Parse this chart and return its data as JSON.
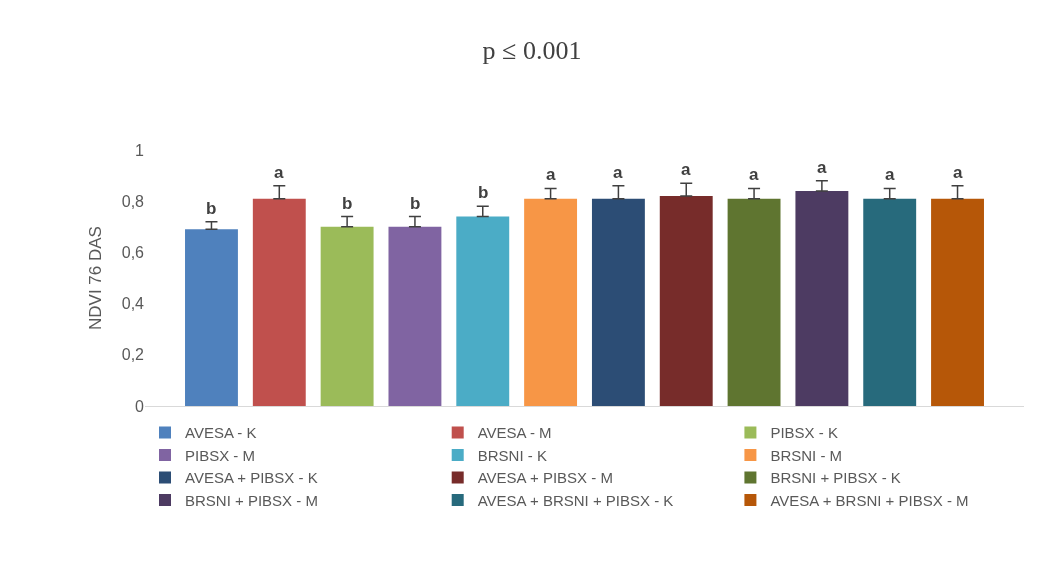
{
  "chart_data": {
    "type": "bar",
    "title": "p ≤ 0.001",
    "ylabel": "NDVI 76 DAS",
    "categories": [
      null
    ],
    "ylim": [
      0,
      1
    ],
    "yticks": [
      0,
      {
        "value": 0.2,
        "label": "0,2"
      },
      {
        "value": 0.4,
        "label": "0,4"
      },
      {
        "value": 0.6,
        "label": "0,6"
      },
      {
        "value": 0.8,
        "label": "0,8"
      },
      1
    ],
    "legend": "bottom",
    "series": [
      {
        "name": "AVESA - K",
        "color": "#4f81bd",
        "values": [
          0.69
        ],
        "errors": [
          [
            0.69,
            0.72
          ]
        ],
        "value_labels": [
          "b"
        ]
      },
      {
        "name": "AVESA - M",
        "color": "#c0504d",
        "values": [
          0.81
        ],
        "errors": [
          [
            0.81,
            0.86
          ]
        ],
        "value_labels": [
          "a"
        ]
      },
      {
        "name": "PIBSX - K",
        "color": "#9bbb59",
        "values": [
          0.7
        ],
        "errors": [
          [
            0.7,
            0.74
          ]
        ],
        "value_labels": [
          "b"
        ]
      },
      {
        "name": "PIBSX - M",
        "color": "#8064a2",
        "values": [
          0.7
        ],
        "errors": [
          [
            0.7,
            0.74
          ]
        ],
        "value_labels": [
          "b"
        ]
      },
      {
        "name": "BRSNI - K",
        "color": "#4bacc6",
        "values": [
          0.74
        ],
        "errors": [
          [
            0.74,
            0.78
          ]
        ],
        "value_labels": [
          "b"
        ]
      },
      {
        "name": "BRSNI - M",
        "color": "#f79646",
        "values": [
          0.81
        ],
        "errors": [
          [
            0.81,
            0.85
          ]
        ],
        "value_labels": [
          "a"
        ]
      },
      {
        "name": "AVESA + PIBSX - K",
        "color": "#2c4d75",
        "values": [
          0.81
        ],
        "errors": [
          [
            0.81,
            0.86
          ]
        ],
        "value_labels": [
          "a"
        ]
      },
      {
        "name": "AVESA + PIBSX - M",
        "color": "#772c2a",
        "values": [
          0.82
        ],
        "errors": [
          [
            0.82,
            0.87
          ]
        ],
        "value_labels": [
          "a"
        ]
      },
      {
        "name": "BRSNI + PIBSX - K",
        "color": "#5f7530",
        "values": [
          0.81
        ],
        "errors": [
          [
            0.81,
            0.85
          ]
        ],
        "value_labels": [
          "a"
        ]
      },
      {
        "name": "BRSNI + PIBSX - M",
        "color": "#4d3b62",
        "values": [
          0.84
        ],
        "errors": [
          [
            0.84,
            0.88
          ]
        ],
        "value_labels": [
          "a"
        ]
      },
      {
        "name": "AVESA + BRSNI + PIBSX - K",
        "color": "#276a7c",
        "values": [
          0.81
        ],
        "errors": [
          [
            0.81,
            0.85
          ]
        ],
        "value_labels": [
          "a"
        ]
      },
      {
        "name": "AVESA + BRSNI + PIBSX - M",
        "color": "#b65708",
        "values": [
          0.81
        ],
        "errors": [
          [
            0.81,
            0.86
          ]
        ],
        "value_labels": [
          "a"
        ]
      }
    ]
  }
}
